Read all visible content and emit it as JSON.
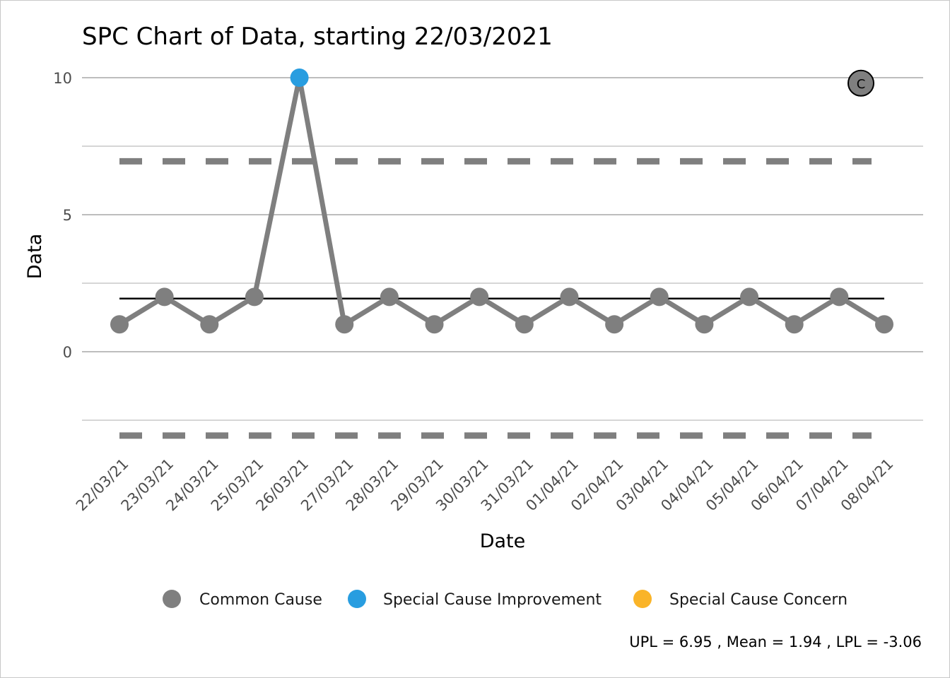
{
  "chart_data": {
    "type": "line",
    "title": "SPC Chart of Data, starting 22/03/2021",
    "xlabel": "Date",
    "ylabel": "Data",
    "ylim": [
      -3.45,
      10.4
    ],
    "yticks": [
      0,
      5,
      10
    ],
    "grid": true,
    "legend_position": "bottom",
    "categories": [
      "22/03/21",
      "23/03/21",
      "24/03/21",
      "25/03/21",
      "26/03/21",
      "27/03/21",
      "28/03/21",
      "29/03/21",
      "30/03/21",
      "31/03/21",
      "01/04/21",
      "02/04/21",
      "03/04/21",
      "04/04/21",
      "05/04/21",
      "06/04/21",
      "07/04/21",
      "08/04/21"
    ],
    "values": [
      1,
      2,
      1,
      2,
      10,
      1,
      2,
      1,
      2,
      1,
      2,
      1,
      2,
      1,
      2,
      1,
      2,
      1
    ],
    "point_class": [
      "common",
      "common",
      "common",
      "common",
      "improvement",
      "common",
      "common",
      "common",
      "common",
      "common",
      "common",
      "common",
      "common",
      "common",
      "common",
      "common",
      "common",
      "common"
    ],
    "mean": 1.94,
    "upl": 6.95,
    "lpl": -3.06,
    "legend": [
      {
        "key": "common",
        "label": "Common Cause",
        "color": "#7f7f7f"
      },
      {
        "key": "improvement",
        "label": "Special Cause Improvement",
        "color": "#289de0"
      },
      {
        "key": "concern",
        "label": "Special Cause Concern",
        "color": "#fab428"
      }
    ],
    "caption": "UPL =  6.95 , Mean =  1.94 , LPL =  -3.06",
    "assurance_icon": {
      "label": "C",
      "value": 9.8,
      "color": "#7f7f7f"
    },
    "line_color": "#7f7f7f",
    "mean_color": "#000000",
    "grid_color": "#bdbdbd"
  }
}
